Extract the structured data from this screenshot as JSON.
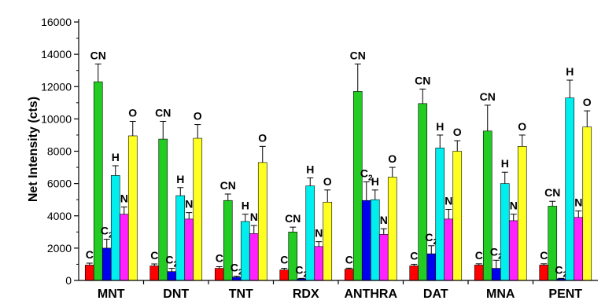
{
  "chart_data": {
    "type": "bar",
    "title": "",
    "xlabel": "",
    "ylabel": "Net Intensity (cts)",
    "ylim": [
      0,
      16000
    ],
    "yticks": [
      0,
      2000,
      4000,
      6000,
      8000,
      10000,
      12000,
      14000,
      16000
    ],
    "grid": false,
    "legend": "none",
    "categories": [
      "MNT",
      "DNT",
      "TNT",
      "RDX",
      "ANTHRA",
      "DAT",
      "MNA",
      "PENT"
    ],
    "series": [
      {
        "name": "C",
        "label_base": "C",
        "label_sub": "",
        "color": "#ff0000",
        "values": [
          950,
          900,
          750,
          650,
          700,
          900,
          950,
          950
        ],
        "errors": [
          120,
          120,
          100,
          100,
          60,
          100,
          80,
          80
        ]
      },
      {
        "name": "CN",
        "label_base": "CN",
        "label_sub": "",
        "color": "#22cc22",
        "values": [
          12300,
          8750,
          4950,
          3000,
          11700,
          10950,
          9250,
          4600
        ],
        "errors": [
          1100,
          1100,
          400,
          300,
          1700,
          900,
          1600,
          300
        ]
      },
      {
        "name": "C2",
        "label_base": "C",
        "label_sub": "2",
        "color": "#0000ee",
        "values": [
          2000,
          550,
          200,
          100,
          4950,
          1650,
          750,
          100
        ],
        "errors": [
          550,
          200,
          60,
          30,
          1150,
          500,
          500,
          30
        ]
      },
      {
        "name": "H",
        "label_base": "H",
        "label_sub": "",
        "color": "#00eeee",
        "values": [
          6500,
          5250,
          3650,
          5850,
          5000,
          8200,
          6000,
          11300
        ],
        "errors": [
          600,
          500,
          450,
          500,
          600,
          800,
          700,
          1100
        ]
      },
      {
        "name": "N",
        "label_base": "N",
        "label_sub": "",
        "color": "#ff22ff",
        "values": [
          4100,
          3800,
          2900,
          2100,
          2850,
          3800,
          3700,
          3900
        ],
        "errors": [
          450,
          400,
          500,
          300,
          350,
          600,
          400,
          400
        ]
      },
      {
        "name": "O",
        "label_base": "O",
        "label_sub": "",
        "color": "#ffff22",
        "values": [
          8950,
          8800,
          7300,
          4850,
          6400,
          8000,
          8300,
          9500
        ],
        "errors": [
          900,
          850,
          1000,
          750,
          600,
          650,
          700,
          1000
        ]
      }
    ]
  }
}
